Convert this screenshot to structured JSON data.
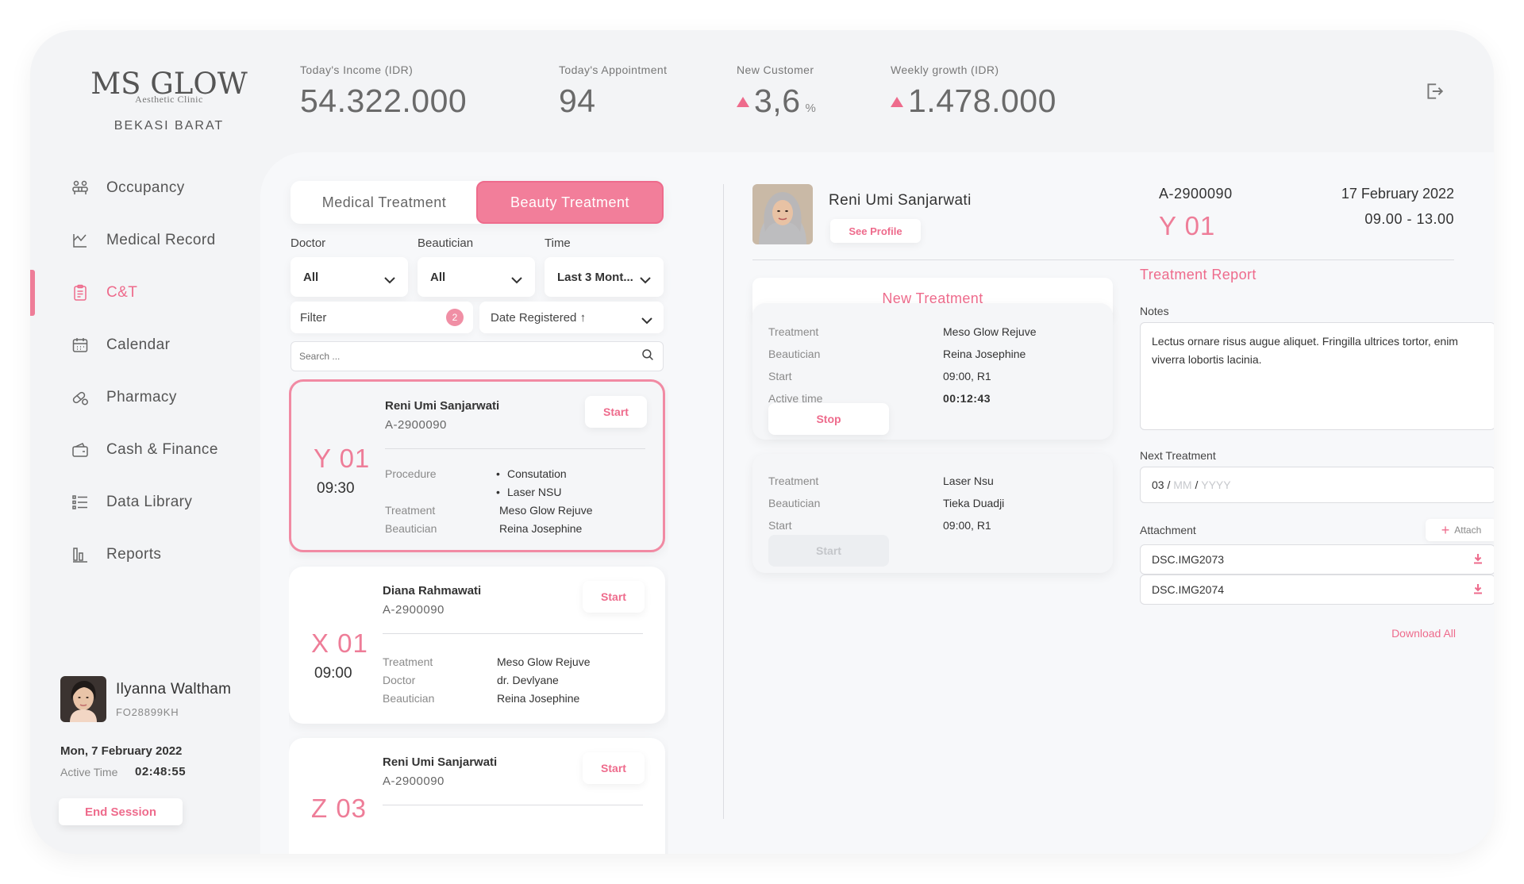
{
  "brand": {
    "logo_main": "MS GLOW",
    "logo_sub": "Aesthetic Clinic",
    "branch": "BEKASI BARAT"
  },
  "nav": {
    "items": [
      {
        "label": "Occupancy",
        "icon": "occupancy-icon"
      },
      {
        "label": "Medical Record",
        "icon": "medical-record-icon"
      },
      {
        "label": "C&T",
        "icon": "clipboard-icon",
        "active": true
      },
      {
        "label": "Calendar",
        "icon": "calendar-icon"
      },
      {
        "label": "Pharmacy",
        "icon": "pill-icon"
      },
      {
        "label": "Cash & Finance",
        "icon": "wallet-icon"
      },
      {
        "label": "Data Library",
        "icon": "list-icon"
      },
      {
        "label": "Reports",
        "icon": "bar-chart-icon"
      }
    ]
  },
  "user": {
    "name": "Ilyanna Waltham",
    "id": "FO28899KH",
    "date": "Mon, 7 February 2022",
    "active_label": "Active Time",
    "active_time": "02:48:55",
    "end_session": "End Session"
  },
  "stats": {
    "income": {
      "label": "Today's Income (IDR)",
      "value": "54.322.000"
    },
    "appointment": {
      "label": "Today's Appointment",
      "value": "94"
    },
    "new_customer": {
      "label": "New Customer",
      "value": "3,6",
      "unit": "%",
      "trend": "up"
    },
    "weekly": {
      "label": "Weekly growth (IDR)",
      "value": "1.478.000",
      "trend": "up"
    }
  },
  "tabs": {
    "medical": "Medical Treatment",
    "beauty": "Beauty Treatment",
    "active": "beauty"
  },
  "filters": {
    "doctor_label": "Doctor",
    "doctor_value": "All",
    "beautician_label": "Beautician",
    "beautician_value": "All",
    "time_label": "Time",
    "time_value": "Last 3 Mont...",
    "filter_label": "Filter",
    "filter_count": "2",
    "sort_label": "Date Registered",
    "search_placeholder": "Search ..."
  },
  "queue": [
    {
      "code": "Y 01",
      "time": "09:30",
      "name": "Reni Umi Sanjarwati",
      "id": "A-2900090",
      "start": "Start",
      "selected": true,
      "procedure_label": "Procedure",
      "procedures": [
        "Consutation",
        "Laser NSU"
      ],
      "treatment_label": "Treatment",
      "treatment": "Meso Glow Rejuve",
      "beautician_label": "Beautician",
      "beautician": "Reina Josephine"
    },
    {
      "code": "X 01",
      "time": "09:00",
      "name": "Diana Rahmawati",
      "id": "A-2900090",
      "start": "Start",
      "treatment_label": "Treatment",
      "treatment": "Meso Glow Rejuve",
      "doctor_label": "Doctor",
      "doctor": "dr. Devlyane",
      "beautician_label": "Beautician",
      "beautician": "Reina Josephine"
    },
    {
      "code": "Z 03",
      "name": "Reni Umi Sanjarwati",
      "id": "A-2900090",
      "start": "Start"
    }
  ],
  "patient": {
    "name": "Reni Umi Sanjarwati",
    "see_profile": "See Profile",
    "id": "A-2900090",
    "code": "Y 01",
    "date": "17 February 2022",
    "time": "09.00 - 13.00"
  },
  "new_treatment": "New Treatment",
  "treatments": [
    {
      "treatment_label": "Treatment",
      "treatment": "Meso Glow Rejuve",
      "beautician_label": "Beautician",
      "beautician": "Reina Josephine",
      "start_label": "Start",
      "start": "09:00, R1",
      "active_label": "Active time",
      "active": "00:12:43",
      "button": "Stop"
    },
    {
      "treatment_label": "Treatment",
      "treatment": "Laser Nsu",
      "beautician_label": "Beautician",
      "beautician": "Tieka Duadji",
      "start_label": "Start",
      "start": "09:00, R1",
      "button": "Start"
    }
  ],
  "report": {
    "title": "Treatment Report",
    "notes_label": "Notes",
    "notes": "Lectus ornare risus augue aliquet. Fringilla ultrices tortor, enim viverra lobortis lacinia.",
    "next_label": "Next Treatment",
    "next_dd": "03",
    "next_mm": "MM",
    "next_yyyy": "YYYY",
    "attachment_label": "Attachment",
    "attach_button": "Attach",
    "files": [
      "DSC.IMG2073",
      "DSC.IMG2074"
    ],
    "download_all": "Download All"
  },
  "colors": {
    "accent": "#ee6b8c",
    "accent_fill": "#f27e9a",
    "background": "#f3f4f6"
  }
}
